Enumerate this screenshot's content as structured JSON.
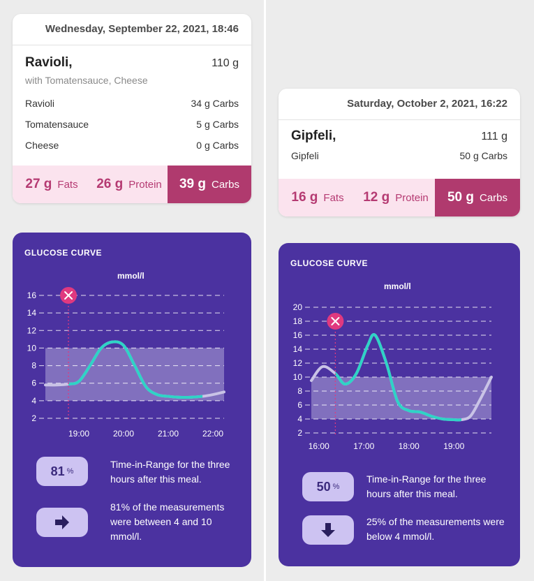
{
  "left": {
    "meal": {
      "date": "Wednesday, September 22, 2021, 18:46",
      "title": "Ravioli,",
      "subtitle": "with Tomatensauce, Cheese",
      "weight": "110 g",
      "ingredients": [
        {
          "name": "Ravioli",
          "value": "34 g Carbs"
        },
        {
          "name": "Tomatensauce",
          "value": "5 g Carbs"
        },
        {
          "name": "Cheese",
          "value": "0 g Carbs"
        }
      ],
      "fats": {
        "value": "27 g",
        "label": "Fats"
      },
      "protein": {
        "value": "26 g",
        "label": "Protein"
      },
      "carbs": {
        "value": "39 g",
        "label": "Carbs"
      }
    },
    "glucose": {
      "title": "GLUCOSE CURVE",
      "unit": "mmol/l",
      "tir_value": "81",
      "tir_unit": "%",
      "tir_text": "Time-in-Range for the three hours after this meal.",
      "stat_icon": "arrow-right-icon",
      "stat_text": "81% of the measurements were between 4 and 10 mmol/l."
    }
  },
  "right": {
    "meal": {
      "date": "Saturday, October 2, 2021, 16:22",
      "title": "Gipfeli,",
      "weight": "111 g",
      "ingredients": [
        {
          "name": "Gipfeli",
          "value": "50 g Carbs"
        }
      ],
      "fats": {
        "value": "16 g",
        "label": "Fats"
      },
      "protein": {
        "value": "12 g",
        "label": "Protein"
      },
      "carbs": {
        "value": "50 g",
        "label": "Carbs"
      }
    },
    "glucose": {
      "title": "GLUCOSE CURVE",
      "unit": "mmol/l",
      "tir_value": "50",
      "tir_unit": "%",
      "tir_text": "Time-in-Range for the three hours after this meal.",
      "stat_icon": "arrow-down-icon",
      "stat_text": "25% of the measurements were below 4 mmol/l."
    }
  },
  "colors": {
    "card_bg": "#4b32a0",
    "range_band": "#8e80c6",
    "curve": "#2fd3c6",
    "curve_faded": "#c9c3e6",
    "carbs": "#b03a6e",
    "macro_bg": "#fbe3ee",
    "meal_marker": "#e0397f",
    "pill": "#cdc3f2"
  },
  "chart_data": [
    {
      "type": "line",
      "title": "GLUCOSE CURVE",
      "ylabel": "mmol/l",
      "ylim": [
        2,
        16
      ],
      "yticks": [
        2,
        4,
        6,
        8,
        10,
        12,
        14,
        16
      ],
      "xticks": [
        "19:00",
        "20:00",
        "21:00",
        "22:00"
      ],
      "xlim": [
        "18:15",
        "22:15"
      ],
      "target_range": [
        4,
        10
      ],
      "meal_time": "18:46",
      "meal_marker": "fork-knife-icon",
      "grid": true,
      "series": [
        {
          "x": [
            "18:15",
            "18:30",
            "18:46",
            "19:00",
            "19:15",
            "19:30",
            "19:45",
            "20:00",
            "20:15",
            "20:30",
            "20:45",
            "21:00",
            "21:15",
            "21:30",
            "21:46",
            "22:00",
            "22:15"
          ],
          "y": [
            5.8,
            5.8,
            5.9,
            6.2,
            8.0,
            10.0,
            10.7,
            10.3,
            8.0,
            5.6,
            4.7,
            4.5,
            4.4,
            4.4,
            4.5,
            4.7,
            5.0
          ]
        }
      ]
    },
    {
      "type": "line",
      "title": "GLUCOSE CURVE",
      "ylabel": "mmol/l",
      "ylim": [
        2,
        20
      ],
      "yticks": [
        2,
        4,
        6,
        8,
        10,
        12,
        14,
        16,
        18,
        20
      ],
      "xticks": [
        "16:00",
        "17:00",
        "18:00",
        "19:00"
      ],
      "xlim": [
        "15:50",
        "19:50"
      ],
      "target_range": [
        4,
        10
      ],
      "meal_time": "16:22",
      "meal_marker": "fork-knife-icon",
      "grid": true,
      "series": [
        {
          "x": [
            "15:50",
            "16:05",
            "16:22",
            "16:35",
            "16:50",
            "17:05",
            "17:15",
            "17:30",
            "17:45",
            "18:00",
            "18:15",
            "18:30",
            "18:45",
            "19:00",
            "19:10",
            "19:22",
            "19:35",
            "19:50"
          ],
          "y": [
            9.5,
            11.5,
            10.5,
            9.0,
            10.5,
            14.5,
            16.0,
            12.0,
            6.5,
            5.2,
            5.0,
            4.4,
            4.0,
            3.9,
            3.9,
            4.4,
            6.8,
            10.0
          ]
        }
      ]
    }
  ]
}
